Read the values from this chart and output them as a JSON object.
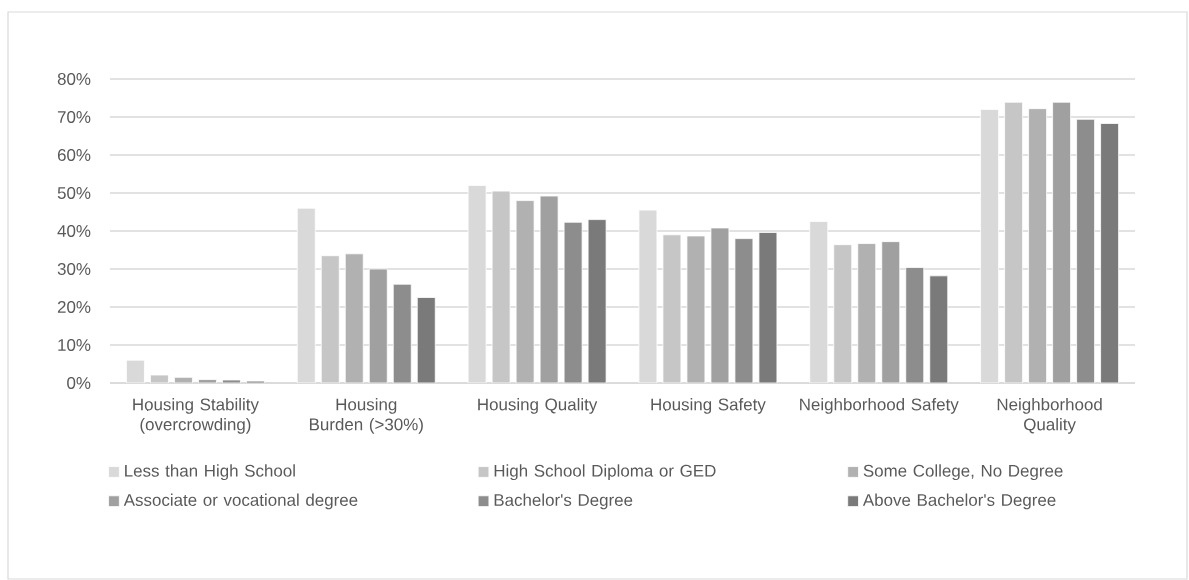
{
  "chart_data": {
    "type": "bar",
    "categories": [
      "Housing Stability (overcrowding)",
      "Housing Burden (>30%)",
      "Housing Quality",
      "Housing Safety",
      "Neighborhood Safety",
      "Neighborhood Quality"
    ],
    "series": [
      {
        "name": "Less than High School",
        "color": "#d9d9d9",
        "values": [
          6,
          46,
          52,
          45.5,
          42.5,
          72
        ]
      },
      {
        "name": "High School Diploma or GED",
        "color": "#c6c6c6",
        "values": [
          2.1,
          33.5,
          50.5,
          39,
          36.4,
          73.9
        ]
      },
      {
        "name": "Some College, No Degree",
        "color": "#b1b1b1",
        "values": [
          1.5,
          34,
          48,
          38.7,
          36.7,
          72.2
        ]
      },
      {
        "name": "Associate or vocational degree",
        "color": "#a0a0a0",
        "values": [
          0.9,
          30,
          49.2,
          40.8,
          37.2,
          73.9
        ]
      },
      {
        "name": "Bachelor's Degree",
        "color": "#8d8d8d",
        "values": [
          0.8,
          26,
          42.3,
          38,
          30.4,
          69.4
        ]
      },
      {
        "name": "Above Bachelor's Degree",
        "color": "#7a7a7a",
        "values": [
          0.5,
          22.5,
          43,
          39.6,
          28.2,
          68.3
        ]
      }
    ],
    "ylim": [
      0,
      80
    ],
    "yticks": [
      {
        "value": 0,
        "label": "0%"
      },
      {
        "value": 10,
        "label": "10%"
      },
      {
        "value": 20,
        "label": "20%"
      },
      {
        "value": 30,
        "label": "30%"
      },
      {
        "value": 40,
        "label": "40%"
      },
      {
        "value": 50,
        "label": "50%"
      },
      {
        "value": 60,
        "label": "60%"
      },
      {
        "value": 70,
        "label": "70%"
      },
      {
        "value": 80,
        "label": "80%"
      }
    ],
    "grid": "y",
    "legend": "bottom"
  }
}
